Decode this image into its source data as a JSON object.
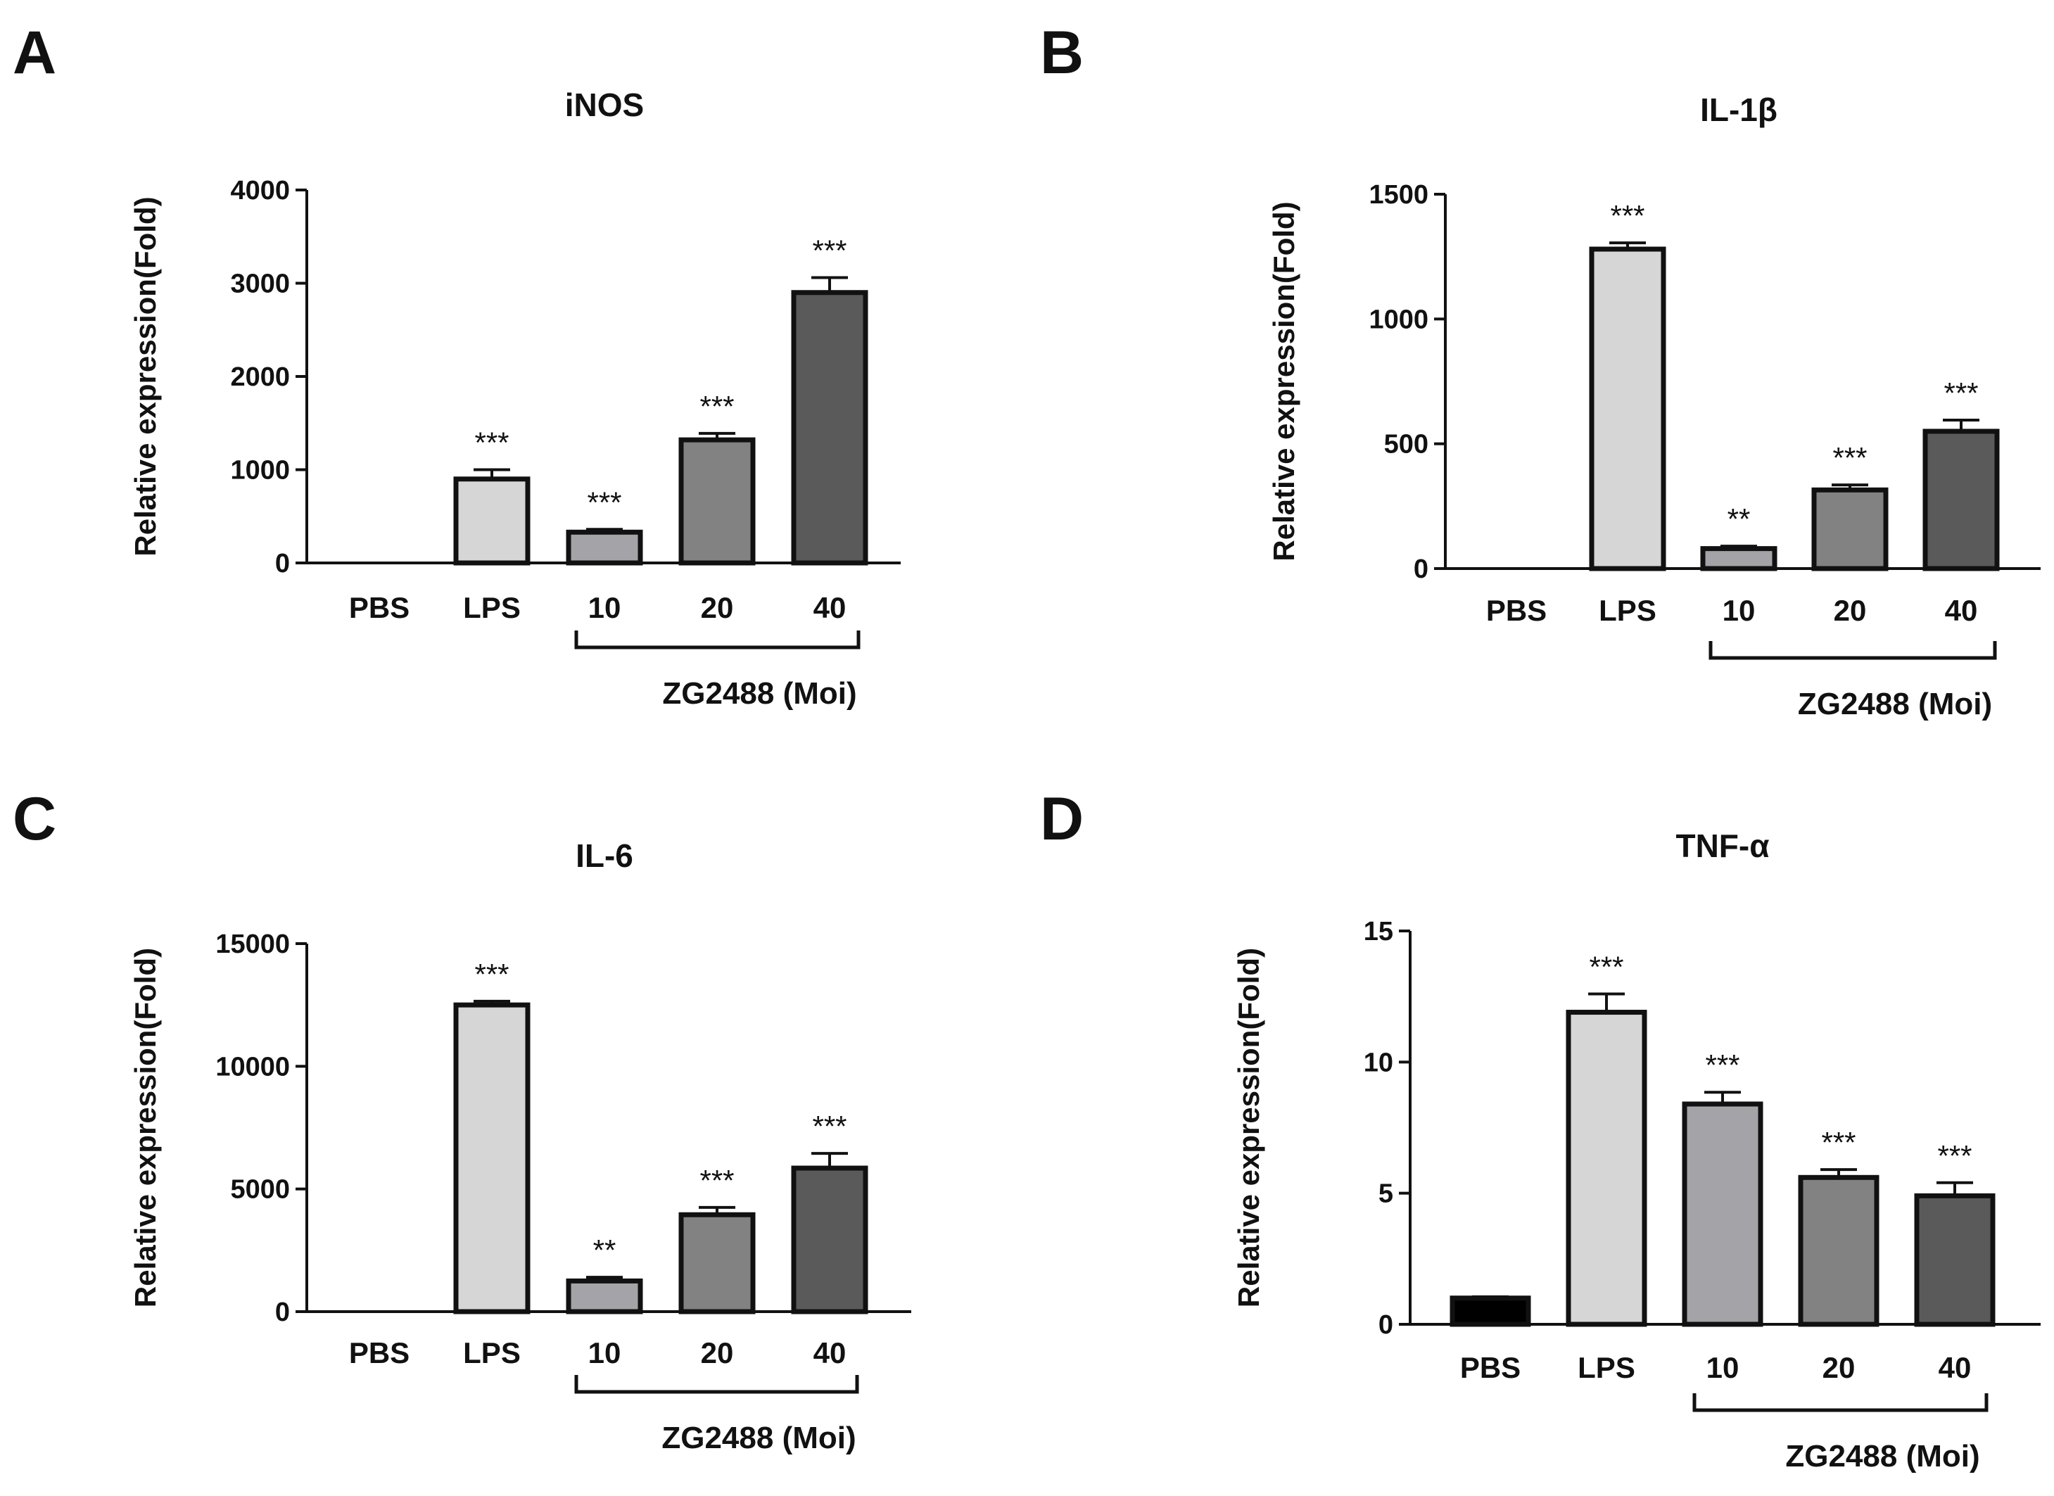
{
  "chart_data": [
    {
      "panel": "A",
      "type": "bar",
      "title": "iNOS",
      "ylabel": "Relative expression(Fold)",
      "ylim": [
        0,
        4000
      ],
      "yticks": [
        0,
        1000,
        2000,
        3000,
        4000
      ],
      "categories": [
        "PBS",
        "LPS",
        "10",
        "20",
        "40"
      ],
      "values": [
        1,
        900,
        330,
        1320,
        2900
      ],
      "errors": [
        0,
        100,
        30,
        70,
        160
      ],
      "significance": [
        "",
        "***",
        "***",
        "***",
        "***"
      ],
      "colors": [
        "#000000",
        "#d6d6d6",
        "#a3a3a8",
        "#828282",
        "#5a5a5a"
      ],
      "group_label": "ZG2488 (Moi)",
      "group_categories": [
        "10",
        "20",
        "40"
      ]
    },
    {
      "panel": "B",
      "type": "bar",
      "title": "IL-1β",
      "ylabel": "Relative expression(Fold)",
      "ylim": [
        0,
        1500
      ],
      "yticks": [
        0,
        500,
        1000,
        1500
      ],
      "categories": [
        "PBS",
        "LPS",
        "10",
        "20",
        "40"
      ],
      "values": [
        1,
        1280,
        80,
        315,
        550
      ],
      "errors": [
        0,
        25,
        10,
        20,
        45
      ],
      "significance": [
        "",
        "***",
        "**",
        "***",
        "***"
      ],
      "colors": [
        "#000000",
        "#d6d6d6",
        "#a3a3a8",
        "#828282",
        "#5a5a5a"
      ],
      "group_label": "ZG2488 (Moi)",
      "group_categories": [
        "10",
        "20",
        "40"
      ]
    },
    {
      "panel": "C",
      "type": "bar",
      "title": "IL-6",
      "ylabel": "Relative expression(Fold)",
      "ylim": [
        0,
        15000
      ],
      "yticks": [
        0,
        5000,
        10000,
        15000
      ],
      "categories": [
        "PBS",
        "LPS",
        "10",
        "20",
        "40"
      ],
      "values": [
        1,
        12500,
        1250,
        3950,
        5850
      ],
      "errors": [
        0,
        150,
        150,
        300,
        600
      ],
      "significance": [
        "",
        "***",
        "**",
        "***",
        "***"
      ],
      "colors": [
        "#000000",
        "#d6d6d6",
        "#a3a3a8",
        "#828282",
        "#5a5a5a"
      ],
      "group_label": "ZG2488 (Moi)",
      "group_categories": [
        "10",
        "20",
        "40"
      ]
    },
    {
      "panel": "D",
      "type": "bar",
      "title": "TNF-α",
      "ylabel": "Relative expression(Fold)",
      "ylim": [
        0,
        15
      ],
      "yticks": [
        0,
        5,
        10,
        15
      ],
      "categories": [
        "PBS",
        "LPS",
        "10",
        "20",
        "40"
      ],
      "values": [
        1,
        11.9,
        8.4,
        5.6,
        4.9
      ],
      "errors": [
        0.05,
        0.7,
        0.45,
        0.3,
        0.5
      ],
      "significance": [
        "",
        "***",
        "***",
        "***",
        "***"
      ],
      "colors": [
        "#000000",
        "#d6d6d6",
        "#a3a3a8",
        "#828282",
        "#5a5a5a"
      ],
      "group_label": "ZG2488 (Moi)",
      "group_categories": [
        "10",
        "20",
        "40"
      ]
    }
  ]
}
